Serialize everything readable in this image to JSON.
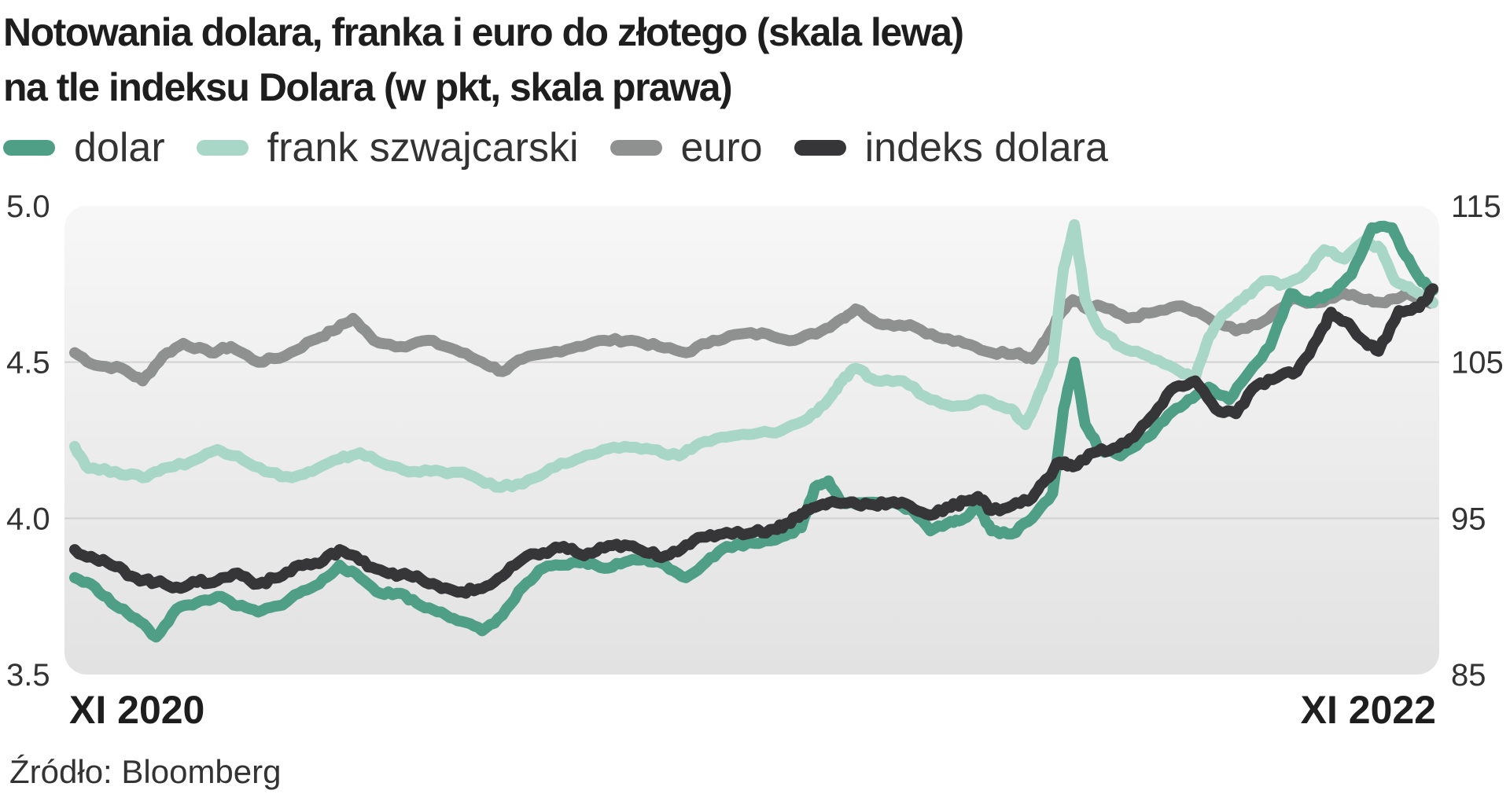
{
  "title": {
    "line1": "Notowania dolara, franka i euro do złotego (skala lewa)",
    "line2": "na tle indeksu Dolara (w pkt, skala prawa)"
  },
  "source": "Źródło: Bloomberg",
  "chart_data": {
    "type": "line",
    "x_start_label": "XI 2020",
    "x_end_label": "XI 2022",
    "y_left": {
      "ticks": [
        5.0,
        4.5,
        4.0,
        3.5
      ],
      "labels": [
        "5.0",
        "4.5",
        "4.0",
        "3.5"
      ],
      "range": [
        3.5,
        5.0
      ]
    },
    "y_right": {
      "ticks": [
        115,
        105,
        95,
        85
      ],
      "labels": [
        "115",
        "105",
        "95",
        "85"
      ],
      "range": [
        85,
        115
      ]
    },
    "grid": "horizontal",
    "legend_position": "top-left",
    "series": [
      {
        "name": "euro",
        "axis": "left",
        "color": "#8f9190",
        "points": [
          [
            0.0,
            4.53
          ],
          [
            0.015,
            4.49
          ],
          [
            0.035,
            4.48
          ],
          [
            0.05,
            4.44
          ],
          [
            0.065,
            4.52
          ],
          [
            0.08,
            4.56
          ],
          [
            0.1,
            4.53
          ],
          [
            0.115,
            4.55
          ],
          [
            0.135,
            4.5
          ],
          [
            0.155,
            4.52
          ],
          [
            0.175,
            4.57
          ],
          [
            0.19,
            4.6
          ],
          [
            0.205,
            4.64
          ],
          [
            0.22,
            4.57
          ],
          [
            0.24,
            4.55
          ],
          [
            0.26,
            4.57
          ],
          [
            0.28,
            4.54
          ],
          [
            0.3,
            4.5
          ],
          [
            0.315,
            4.47
          ],
          [
            0.33,
            4.51
          ],
          [
            0.35,
            4.53
          ],
          [
            0.37,
            4.55
          ],
          [
            0.39,
            4.57
          ],
          [
            0.41,
            4.57
          ],
          [
            0.43,
            4.55
          ],
          [
            0.45,
            4.53
          ],
          [
            0.47,
            4.57
          ],
          [
            0.49,
            4.59
          ],
          [
            0.51,
            4.59
          ],
          [
            0.53,
            4.57
          ],
          [
            0.55,
            4.6
          ],
          [
            0.565,
            4.64
          ],
          [
            0.575,
            4.67
          ],
          [
            0.595,
            4.62
          ],
          [
            0.615,
            4.62
          ],
          [
            0.635,
            4.58
          ],
          [
            0.655,
            4.56
          ],
          [
            0.675,
            4.53
          ],
          [
            0.695,
            4.53
          ],
          [
            0.705,
            4.51
          ],
          [
            0.715,
            4.57
          ],
          [
            0.725,
            4.65
          ],
          [
            0.735,
            4.7
          ],
          [
            0.745,
            4.67
          ],
          [
            0.755,
            4.68
          ],
          [
            0.775,
            4.64
          ],
          [
            0.795,
            4.66
          ],
          [
            0.815,
            4.68
          ],
          [
            0.835,
            4.64
          ],
          [
            0.855,
            4.6
          ],
          [
            0.875,
            4.63
          ],
          [
            0.895,
            4.7
          ],
          [
            0.915,
            4.69
          ],
          [
            0.935,
            4.72
          ],
          [
            0.95,
            4.7
          ],
          [
            0.965,
            4.69
          ],
          [
            0.98,
            4.72
          ],
          [
            0.995,
            4.7
          ],
          [
            1.0,
            4.69
          ]
        ]
      },
      {
        "name": "frank szwajcarski",
        "axis": "left",
        "color": "#a8d7c8",
        "points": [
          [
            0.0,
            4.23
          ],
          [
            0.01,
            4.16
          ],
          [
            0.03,
            4.15
          ],
          [
            0.05,
            4.13
          ],
          [
            0.065,
            4.16
          ],
          [
            0.085,
            4.18
          ],
          [
            0.105,
            4.22
          ],
          [
            0.12,
            4.2
          ],
          [
            0.14,
            4.15
          ],
          [
            0.16,
            4.13
          ],
          [
            0.175,
            4.15
          ],
          [
            0.195,
            4.19
          ],
          [
            0.21,
            4.21
          ],
          [
            0.23,
            4.17
          ],
          [
            0.25,
            4.15
          ],
          [
            0.27,
            4.15
          ],
          [
            0.29,
            4.14
          ],
          [
            0.31,
            4.1
          ],
          [
            0.33,
            4.11
          ],
          [
            0.35,
            4.16
          ],
          [
            0.37,
            4.19
          ],
          [
            0.385,
            4.21
          ],
          [
            0.405,
            4.23
          ],
          [
            0.425,
            4.22
          ],
          [
            0.445,
            4.2
          ],
          [
            0.46,
            4.24
          ],
          [
            0.48,
            4.26
          ],
          [
            0.5,
            4.27
          ],
          [
            0.52,
            4.28
          ],
          [
            0.54,
            4.32
          ],
          [
            0.555,
            4.38
          ],
          [
            0.565,
            4.44
          ],
          [
            0.575,
            4.48
          ],
          [
            0.59,
            4.44
          ],
          [
            0.61,
            4.44
          ],
          [
            0.63,
            4.38
          ],
          [
            0.65,
            4.36
          ],
          [
            0.67,
            4.38
          ],
          [
            0.69,
            4.35
          ],
          [
            0.7,
            4.3
          ],
          [
            0.71,
            4.4
          ],
          [
            0.72,
            4.5
          ],
          [
            0.728,
            4.8
          ],
          [
            0.736,
            4.94
          ],
          [
            0.744,
            4.7
          ],
          [
            0.755,
            4.6
          ],
          [
            0.77,
            4.55
          ],
          [
            0.79,
            4.52
          ],
          [
            0.81,
            4.48
          ],
          [
            0.825,
            4.45
          ],
          [
            0.835,
            4.58
          ],
          [
            0.845,
            4.65
          ],
          [
            0.86,
            4.7
          ],
          [
            0.875,
            4.76
          ],
          [
            0.89,
            4.75
          ],
          [
            0.905,
            4.78
          ],
          [
            0.92,
            4.86
          ],
          [
            0.935,
            4.83
          ],
          [
            0.95,
            4.89
          ],
          [
            0.962,
            4.86
          ],
          [
            0.972,
            4.76
          ],
          [
            0.985,
            4.73
          ],
          [
            1.0,
            4.69
          ]
        ]
      },
      {
        "name": "dolar",
        "axis": "left",
        "color": "#4f9f87",
        "points": [
          [
            0.0,
            3.81
          ],
          [
            0.015,
            3.78
          ],
          [
            0.03,
            3.72
          ],
          [
            0.045,
            3.68
          ],
          [
            0.06,
            3.62
          ],
          [
            0.075,
            3.71
          ],
          [
            0.09,
            3.73
          ],
          [
            0.105,
            3.75
          ],
          [
            0.12,
            3.72
          ],
          [
            0.135,
            3.7
          ],
          [
            0.15,
            3.72
          ],
          [
            0.165,
            3.76
          ],
          [
            0.18,
            3.79
          ],
          [
            0.195,
            3.85
          ],
          [
            0.21,
            3.81
          ],
          [
            0.225,
            3.76
          ],
          [
            0.24,
            3.76
          ],
          [
            0.255,
            3.72
          ],
          [
            0.27,
            3.7
          ],
          [
            0.285,
            3.67
          ],
          [
            0.3,
            3.64
          ],
          [
            0.315,
            3.69
          ],
          [
            0.33,
            3.78
          ],
          [
            0.345,
            3.84
          ],
          [
            0.36,
            3.85
          ],
          [
            0.375,
            3.86
          ],
          [
            0.39,
            3.84
          ],
          [
            0.405,
            3.86
          ],
          [
            0.42,
            3.87
          ],
          [
            0.435,
            3.85
          ],
          [
            0.45,
            3.81
          ],
          [
            0.465,
            3.86
          ],
          [
            0.48,
            3.91
          ],
          [
            0.5,
            3.92
          ],
          [
            0.52,
            3.94
          ],
          [
            0.535,
            3.97
          ],
          [
            0.545,
            4.1
          ],
          [
            0.555,
            4.12
          ],
          [
            0.565,
            4.05
          ],
          [
            0.58,
            4.05
          ],
          [
            0.6,
            4.05
          ],
          [
            0.615,
            4.03
          ],
          [
            0.63,
            3.96
          ],
          [
            0.645,
            3.99
          ],
          [
            0.655,
            4.0
          ],
          [
            0.665,
            4.04
          ],
          [
            0.675,
            3.96
          ],
          [
            0.69,
            3.95
          ],
          [
            0.705,
            4.0
          ],
          [
            0.72,
            4.08
          ],
          [
            0.728,
            4.35
          ],
          [
            0.736,
            4.5
          ],
          [
            0.744,
            4.3
          ],
          [
            0.755,
            4.22
          ],
          [
            0.77,
            4.2
          ],
          [
            0.79,
            4.26
          ],
          [
            0.805,
            4.33
          ],
          [
            0.82,
            4.38
          ],
          [
            0.835,
            4.42
          ],
          [
            0.85,
            4.38
          ],
          [
            0.865,
            4.47
          ],
          [
            0.88,
            4.55
          ],
          [
            0.895,
            4.72
          ],
          [
            0.91,
            4.69
          ],
          [
            0.925,
            4.72
          ],
          [
            0.94,
            4.78
          ],
          [
            0.955,
            4.93
          ],
          [
            0.97,
            4.93
          ],
          [
            0.98,
            4.84
          ],
          [
            0.99,
            4.77
          ],
          [
            1.0,
            4.73
          ]
        ]
      },
      {
        "name": "indeks dolara",
        "axis": "right",
        "color": "#363638",
        "points": [
          [
            0.0,
            93.0
          ],
          [
            0.015,
            92.4
          ],
          [
            0.03,
            91.9
          ],
          [
            0.045,
            91.2
          ],
          [
            0.06,
            90.9
          ],
          [
            0.075,
            90.6
          ],
          [
            0.09,
            90.9
          ],
          [
            0.105,
            91.0
          ],
          [
            0.12,
            91.5
          ],
          [
            0.135,
            90.8
          ],
          [
            0.15,
            91.2
          ],
          [
            0.165,
            92.0
          ],
          [
            0.18,
            92.1
          ],
          [
            0.195,
            93.0
          ],
          [
            0.21,
            92.3
          ],
          [
            0.225,
            91.7
          ],
          [
            0.24,
            91.4
          ],
          [
            0.255,
            91.1
          ],
          [
            0.27,
            90.5
          ],
          [
            0.285,
            90.3
          ],
          [
            0.3,
            90.5
          ],
          [
            0.315,
            91.3
          ],
          [
            0.33,
            92.4
          ],
          [
            0.345,
            92.8
          ],
          [
            0.36,
            93.2
          ],
          [
            0.375,
            92.6
          ],
          [
            0.39,
            93.1
          ],
          [
            0.405,
            93.3
          ],
          [
            0.42,
            92.8
          ],
          [
            0.435,
            92.6
          ],
          [
            0.45,
            93.3
          ],
          [
            0.465,
            93.8
          ],
          [
            0.48,
            94.1
          ],
          [
            0.5,
            94.1
          ],
          [
            0.515,
            94.3
          ],
          [
            0.525,
            94.7
          ],
          [
            0.535,
            95.3
          ],
          [
            0.545,
            95.7
          ],
          [
            0.555,
            96.0
          ],
          [
            0.57,
            96.0
          ],
          [
            0.585,
            95.9
          ],
          [
            0.6,
            96.0
          ],
          [
            0.615,
            95.8
          ],
          [
            0.63,
            95.2
          ],
          [
            0.645,
            95.7
          ],
          [
            0.655,
            96.1
          ],
          [
            0.665,
            96.4
          ],
          [
            0.675,
            95.5
          ],
          [
            0.69,
            95.8
          ],
          [
            0.705,
            96.3
          ],
          [
            0.715,
            97.5
          ],
          [
            0.725,
            98.6
          ],
          [
            0.735,
            98.3
          ],
          [
            0.75,
            99.2
          ],
          [
            0.765,
            99.5
          ],
          [
            0.78,
            100.2
          ],
          [
            0.795,
            101.7
          ],
          [
            0.81,
            103.4
          ],
          [
            0.825,
            103.8
          ],
          [
            0.84,
            102.0
          ],
          [
            0.855,
            101.7
          ],
          [
            0.87,
            103.5
          ],
          [
            0.885,
            104.0
          ],
          [
            0.9,
            104.4
          ],
          [
            0.915,
            106.5
          ],
          [
            0.925,
            108.2
          ],
          [
            0.935,
            107.6
          ],
          [
            0.95,
            106.3
          ],
          [
            0.96,
            105.7
          ],
          [
            0.975,
            108.3
          ],
          [
            0.99,
            108.5
          ],
          [
            1.0,
            109.7
          ]
        ]
      }
    ]
  }
}
